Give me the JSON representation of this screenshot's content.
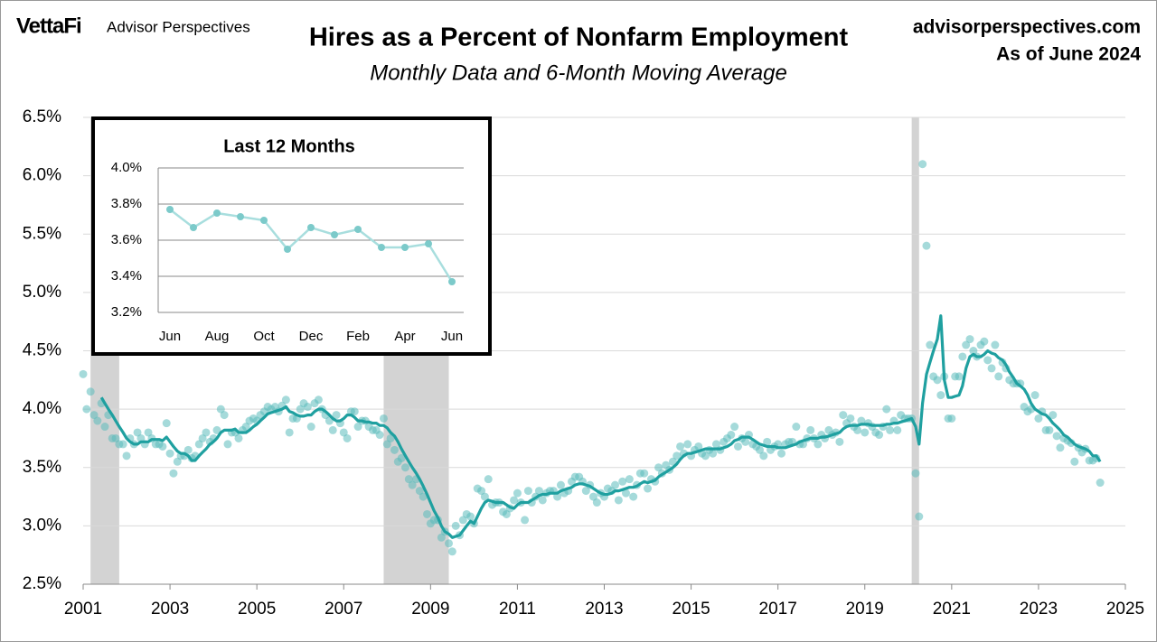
{
  "header": {
    "logo": "VettaFi",
    "brand": "Advisor Perspectives",
    "site": "advisorperspectives.com",
    "as_of": "As of June 2024"
  },
  "chart_data": [
    {
      "type": "line",
      "title": "Hires as a Percent of Nonfarm Employment",
      "subtitle": "Monthly Data and 6-Month Moving Average",
      "xlim": [
        2001,
        2025
      ],
      "xticks": [
        2001,
        2003,
        2005,
        2007,
        2009,
        2011,
        2013,
        2015,
        2017,
        2019,
        2021,
        2023,
        2025
      ],
      "ylim": [
        2.5,
        6.5
      ],
      "yticks": [
        {
          "value": 2.5,
          "label": "2.5%"
        },
        {
          "value": 3.0,
          "label": "3.0%"
        },
        {
          "value": 3.5,
          "label": "3.5%"
        },
        {
          "value": 4.0,
          "label": "4.0%"
        },
        {
          "value": 4.5,
          "label": "4.5%"
        },
        {
          "value": 5.0,
          "label": "5.0%"
        },
        {
          "value": 5.5,
          "label": "5.5%"
        },
        {
          "value": 6.0,
          "label": "6.0%"
        },
        {
          "value": 6.5,
          "label": "6.5%"
        }
      ],
      "grid": true,
      "recession_color": "#d3d3d3",
      "recessions": [
        [
          2001.17,
          2001.83
        ],
        [
          2007.92,
          2009.42
        ],
        [
          2020.08,
          2020.25
        ]
      ],
      "x": [
        2001.0,
        2001.08,
        2001.17,
        2001.25,
        2001.33,
        2001.42,
        2001.5,
        2001.58,
        2001.67,
        2001.75,
        2001.83,
        2001.92,
        2002.0,
        2002.08,
        2002.17,
        2002.25,
        2002.33,
        2002.42,
        2002.5,
        2002.58,
        2002.67,
        2002.75,
        2002.83,
        2002.92,
        2003.0,
        2003.08,
        2003.17,
        2003.25,
        2003.33,
        2003.42,
        2003.5,
        2003.58,
        2003.67,
        2003.75,
        2003.83,
        2003.92,
        2004.0,
        2004.08,
        2004.17,
        2004.25,
        2004.33,
        2004.42,
        2004.5,
        2004.58,
        2004.67,
        2004.75,
        2004.83,
        2004.92,
        2005.0,
        2005.08,
        2005.17,
        2005.25,
        2005.33,
        2005.42,
        2005.5,
        2005.58,
        2005.67,
        2005.75,
        2005.83,
        2005.92,
        2006.0,
        2006.08,
        2006.17,
        2006.25,
        2006.33,
        2006.42,
        2006.5,
        2006.58,
        2006.67,
        2006.75,
        2006.83,
        2006.92,
        2007.0,
        2007.08,
        2007.17,
        2007.25,
        2007.33,
        2007.42,
        2007.5,
        2007.58,
        2007.67,
        2007.75,
        2007.83,
        2007.92,
        2008.0,
        2008.08,
        2008.17,
        2008.25,
        2008.33,
        2008.42,
        2008.5,
        2008.58,
        2008.67,
        2008.75,
        2008.83,
        2008.92,
        2009.0,
        2009.08,
        2009.17,
        2009.25,
        2009.33,
        2009.42,
        2009.5,
        2009.58,
        2009.67,
        2009.75,
        2009.83,
        2009.92,
        2010.0,
        2010.08,
        2010.17,
        2010.25,
        2010.33,
        2010.42,
        2010.5,
        2010.58,
        2010.67,
        2010.75,
        2010.83,
        2010.92,
        2011.0,
        2011.08,
        2011.17,
        2011.25,
        2011.33,
        2011.42,
        2011.5,
        2011.58,
        2011.67,
        2011.75,
        2011.83,
        2011.92,
        2012.0,
        2012.08,
        2012.17,
        2012.25,
        2012.33,
        2012.42,
        2012.5,
        2012.58,
        2012.67,
        2012.75,
        2012.83,
        2012.92,
        2013.0,
        2013.08,
        2013.17,
        2013.25,
        2013.33,
        2013.42,
        2013.5,
        2013.58,
        2013.67,
        2013.75,
        2013.83,
        2013.92,
        2014.0,
        2014.08,
        2014.17,
        2014.25,
        2014.33,
        2014.42,
        2014.5,
        2014.58,
        2014.67,
        2014.75,
        2014.83,
        2014.92,
        2015.0,
        2015.08,
        2015.17,
        2015.25,
        2015.33,
        2015.42,
        2015.5,
        2015.58,
        2015.67,
        2015.75,
        2015.83,
        2015.92,
        2016.0,
        2016.08,
        2016.17,
        2016.25,
        2016.33,
        2016.42,
        2016.5,
        2016.58,
        2016.67,
        2016.75,
        2016.83,
        2016.92,
        2017.0,
        2017.08,
        2017.17,
        2017.25,
        2017.33,
        2017.42,
        2017.5,
        2017.58,
        2017.67,
        2017.75,
        2017.83,
        2017.92,
        2018.0,
        2018.08,
        2018.17,
        2018.25,
        2018.33,
        2018.42,
        2018.5,
        2018.58,
        2018.67,
        2018.75,
        2018.83,
        2018.92,
        2019.0,
        2019.08,
        2019.17,
        2019.25,
        2019.33,
        2019.42,
        2019.5,
        2019.58,
        2019.67,
        2019.75,
        2019.83,
        2019.92,
        2020.0,
        2020.08,
        2020.17,
        2020.25,
        2020.33,
        2020.42,
        2020.5,
        2020.58,
        2020.67,
        2020.75,
        2020.83,
        2020.92,
        2021.0,
        2021.08,
        2021.17,
        2021.25,
        2021.33,
        2021.42,
        2021.5,
        2021.58,
        2021.67,
        2021.75,
        2021.83,
        2021.92,
        2022.0,
        2022.08,
        2022.17,
        2022.25,
        2022.33,
        2022.42,
        2022.5,
        2022.58,
        2022.67,
        2022.75,
        2022.83,
        2022.92,
        2023.0,
        2023.08,
        2023.17,
        2023.25,
        2023.33,
        2023.42,
        2023.5,
        2023.58,
        2023.67,
        2023.75,
        2023.83,
        2023.92,
        2024.0,
        2024.08,
        2024.17,
        2024.25,
        2024.33,
        2024.42
      ],
      "series": [
        {
          "style": "markers",
          "color": "#5bbcbc",
          "values": [
            4.3,
            4.0,
            4.15,
            3.95,
            3.9,
            4.05,
            3.85,
            3.95,
            3.75,
            3.75,
            3.7,
            3.7,
            3.6,
            3.75,
            3.7,
            3.8,
            3.75,
            3.7,
            3.8,
            3.75,
            3.7,
            3.7,
            3.68,
            3.88,
            3.62,
            3.45,
            3.55,
            3.6,
            3.6,
            3.65,
            3.58,
            3.6,
            3.7,
            3.75,
            3.8,
            3.72,
            3.75,
            3.82,
            4.0,
            3.95,
            3.7,
            3.8,
            3.8,
            3.75,
            3.82,
            3.85,
            3.9,
            3.92,
            3.9,
            3.95,
            3.98,
            4.02,
            4.0,
            4.02,
            3.98,
            4.03,
            4.08,
            3.8,
            3.92,
            3.92,
            4.0,
            4.05,
            4.02,
            3.85,
            4.05,
            4.08,
            4.0,
            3.95,
            3.9,
            3.82,
            3.95,
            3.88,
            3.8,
            3.75,
            3.98,
            3.98,
            3.85,
            3.9,
            3.9,
            3.85,
            3.82,
            3.82,
            3.78,
            3.92,
            3.7,
            3.75,
            3.65,
            3.55,
            3.58,
            3.5,
            3.4,
            3.35,
            3.4,
            3.3,
            3.25,
            3.1,
            3.02,
            3.05,
            3.05,
            2.9,
            2.95,
            2.85,
            2.78,
            3.0,
            2.92,
            3.05,
            3.1,
            3.08,
            3.02,
            3.32,
            3.3,
            3.25,
            3.4,
            3.18,
            3.2,
            3.2,
            3.12,
            3.1,
            3.15,
            3.22,
            3.28,
            3.2,
            3.05,
            3.3,
            3.2,
            3.25,
            3.3,
            3.22,
            3.28,
            3.3,
            3.3,
            3.25,
            3.35,
            3.28,
            3.3,
            3.38,
            3.42,
            3.42,
            3.38,
            3.3,
            3.35,
            3.25,
            3.2,
            3.28,
            3.25,
            3.32,
            3.3,
            3.35,
            3.22,
            3.38,
            3.28,
            3.4,
            3.25,
            3.35,
            3.45,
            3.45,
            3.32,
            3.4,
            3.38,
            3.5,
            3.45,
            3.52,
            3.48,
            3.55,
            3.6,
            3.68,
            3.62,
            3.7,
            3.6,
            3.65,
            3.68,
            3.62,
            3.6,
            3.65,
            3.62,
            3.7,
            3.65,
            3.72,
            3.75,
            3.78,
            3.85,
            3.68,
            3.75,
            3.72,
            3.78,
            3.7,
            3.68,
            3.65,
            3.6,
            3.72,
            3.65,
            3.68,
            3.7,
            3.62,
            3.7,
            3.72,
            3.72,
            3.85,
            3.7,
            3.7,
            3.75,
            3.82,
            3.75,
            3.7,
            3.78,
            3.75,
            3.82,
            3.78,
            3.8,
            3.72,
            3.95,
            3.88,
            3.92,
            3.85,
            3.82,
            3.9,
            3.8,
            3.88,
            3.85,
            3.8,
            3.78,
            3.85,
            4.0,
            3.82,
            3.9,
            3.82,
            3.95,
            3.92,
            3.92,
            3.92,
            3.45,
            3.08,
            6.1,
            5.4,
            4.55,
            4.28,
            4.25,
            4.12,
            4.28,
            3.92,
            3.92,
            4.28,
            4.28,
            4.45,
            4.55,
            4.6,
            4.5,
            4.45,
            4.55,
            4.58,
            4.42,
            4.35,
            4.55,
            4.28,
            4.4,
            4.35,
            4.25,
            4.22,
            4.22,
            4.22,
            4.02,
            3.98,
            4.0,
            4.12,
            3.92,
            3.98,
            3.82,
            3.82,
            3.95,
            3.77,
            3.67,
            3.75,
            3.73,
            3.71,
            3.55,
            3.67,
            3.63,
            3.66,
            3.56,
            3.56,
            3.58,
            3.37
          ]
        },
        {
          "style": "line",
          "color": "#1fa0a0",
          "values": [
            null,
            null,
            null,
            null,
            null,
            4.1,
            4.05,
            4.0,
            3.95,
            3.9,
            3.85,
            3.8,
            3.75,
            3.72,
            3.7,
            3.7,
            3.72,
            3.72,
            3.72,
            3.74,
            3.74,
            3.74,
            3.73,
            3.76,
            3.72,
            3.68,
            3.64,
            3.62,
            3.62,
            3.6,
            3.56,
            3.56,
            3.6,
            3.63,
            3.66,
            3.7,
            3.72,
            3.75,
            3.8,
            3.82,
            3.82,
            3.82,
            3.83,
            3.8,
            3.8,
            3.8,
            3.82,
            3.85,
            3.87,
            3.9,
            3.93,
            3.96,
            3.97,
            3.98,
            3.99,
            4.0,
            4.02,
            3.98,
            3.97,
            3.95,
            3.94,
            3.94,
            3.95,
            3.95,
            3.98,
            4.0,
            4.0,
            3.98,
            3.95,
            3.92,
            3.9,
            3.9,
            3.92,
            3.95,
            3.95,
            3.93,
            3.9,
            3.9,
            3.89,
            3.89,
            3.88,
            3.88,
            3.86,
            3.86,
            3.84,
            3.8,
            3.77,
            3.72,
            3.66,
            3.6,
            3.55,
            3.5,
            3.45,
            3.4,
            3.34,
            3.27,
            3.2,
            3.13,
            3.07,
            3.0,
            2.95,
            2.93,
            2.9,
            2.91,
            2.92,
            2.96,
            3.0,
            3.04,
            3.02,
            3.08,
            3.15,
            3.2,
            3.22,
            3.21,
            3.2,
            3.2,
            3.2,
            3.18,
            3.16,
            3.15,
            3.18,
            3.2,
            3.2,
            3.2,
            3.22,
            3.24,
            3.26,
            3.27,
            3.27,
            3.28,
            3.28,
            3.28,
            3.3,
            3.31,
            3.32,
            3.33,
            3.35,
            3.36,
            3.36,
            3.35,
            3.34,
            3.32,
            3.3,
            3.28,
            3.27,
            3.27,
            3.28,
            3.3,
            3.3,
            3.31,
            3.32,
            3.33,
            3.33,
            3.34,
            3.36,
            3.38,
            3.37,
            3.38,
            3.39,
            3.42,
            3.44,
            3.46,
            3.48,
            3.5,
            3.53,
            3.57,
            3.6,
            3.62,
            3.62,
            3.63,
            3.64,
            3.65,
            3.66,
            3.66,
            3.66,
            3.66,
            3.66,
            3.67,
            3.68,
            3.7,
            3.73,
            3.74,
            3.76,
            3.76,
            3.76,
            3.74,
            3.72,
            3.7,
            3.69,
            3.68,
            3.68,
            3.68,
            3.67,
            3.67,
            3.67,
            3.68,
            3.69,
            3.7,
            3.72,
            3.73,
            3.74,
            3.75,
            3.75,
            3.75,
            3.76,
            3.76,
            3.77,
            3.78,
            3.79,
            3.8,
            3.83,
            3.85,
            3.86,
            3.86,
            3.86,
            3.87,
            3.87,
            3.87,
            3.86,
            3.86,
            3.86,
            3.86,
            3.87,
            3.87,
            3.88,
            3.88,
            3.89,
            3.9,
            3.91,
            3.92,
            3.85,
            3.7,
            4.05,
            4.3,
            4.4,
            4.5,
            4.6,
            4.8,
            4.25,
            4.1,
            4.1,
            4.11,
            4.12,
            4.2,
            4.35,
            4.45,
            4.47,
            4.45,
            4.45,
            4.47,
            4.5,
            4.48,
            4.47,
            4.44,
            4.42,
            4.38,
            4.32,
            4.27,
            4.22,
            4.2,
            4.17,
            4.12,
            4.05,
            4.0,
            3.98,
            3.96,
            3.95,
            3.92,
            3.88,
            3.85,
            3.82,
            3.78,
            3.76,
            3.73,
            3.7,
            3.68,
            3.67,
            3.66,
            3.64,
            3.6,
            3.6,
            3.55
          ]
        }
      ]
    },
    {
      "type": "line",
      "title": "Last 12 Months",
      "categories": [
        "Jun",
        null,
        "Aug",
        null,
        "Oct",
        null,
        "Dec",
        null,
        "Feb",
        null,
        "Apr",
        null,
        "Jun"
      ],
      "ylim": [
        3.2,
        4.0
      ],
      "yticks": [
        {
          "value": 3.2,
          "label": "3.2%"
        },
        {
          "value": 3.4,
          "label": "3.4%"
        },
        {
          "value": 3.6,
          "label": "3.6%"
        },
        {
          "value": 3.8,
          "label": "3.8%"
        },
        {
          "value": 4.0,
          "label": "4.0%"
        }
      ],
      "grid": true,
      "line_color": "#a8dede",
      "color": "#7ccaca",
      "values": [
        3.77,
        3.67,
        3.75,
        3.73,
        3.71,
        3.55,
        3.67,
        3.63,
        3.66,
        3.56,
        3.56,
        3.58,
        3.37
      ]
    }
  ]
}
